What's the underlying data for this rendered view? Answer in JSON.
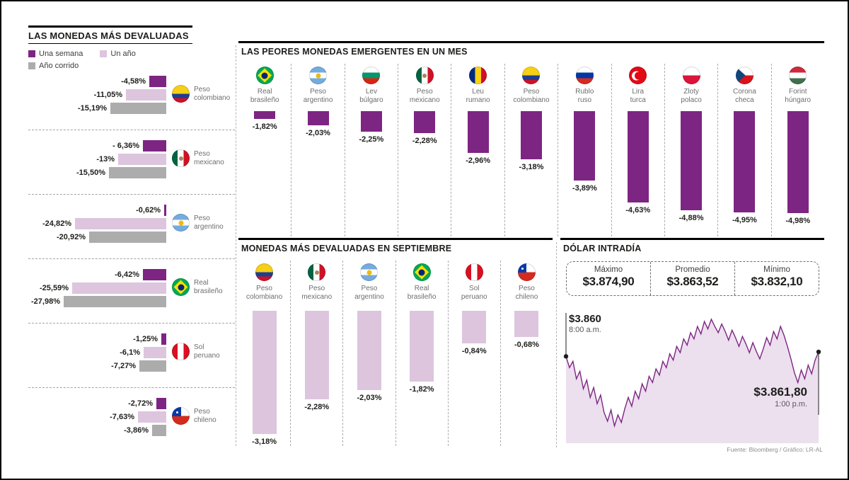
{
  "page": {
    "source_credit": "Fuente: Bloomberg / Gráfico: LR-AL"
  },
  "colors": {
    "purple": "#7d2582",
    "pink": "#ddc5de",
    "pink_light": "#ecdfee",
    "gray": "#acacac",
    "dark": "#1d1d1b"
  },
  "chart_data": [
    {
      "id": "monedas_mas_devaluadas",
      "type": "bar",
      "orientation": "horizontal",
      "title": "LAS MONEDAS MÁS DEVALUADAS",
      "unit": "%",
      "legend": [
        {
          "label": "Una semana",
          "color": "#7d2582"
        },
        {
          "label": "Un año",
          "color": "#ddc5de"
        },
        {
          "label": "Año corrido",
          "color": "#acacac"
        }
      ],
      "groups": [
        {
          "currency": [
            "Peso",
            "colombiano"
          ],
          "flag": "colombia",
          "values": [
            {
              "series": "Una semana",
              "label": "-4,58%",
              "value": -4.58
            },
            {
              "series": "Un año",
              "label": "-11,05%",
              "value": -11.05
            },
            {
              "series": "Año corrido",
              "label": "-15,19%",
              "value": -15.19
            }
          ]
        },
        {
          "currency": [
            "Peso",
            "mexicano"
          ],
          "flag": "mexico",
          "values": [
            {
              "series": "Una semana",
              "label": "- 6,36%",
              "value": -6.36
            },
            {
              "series": "Un año",
              "label": "-13%",
              "value": -13
            },
            {
              "series": "Año corrido",
              "label": "-15,50%",
              "value": -15.5
            }
          ]
        },
        {
          "currency": [
            "Peso",
            "argentino"
          ],
          "flag": "argentina",
          "values": [
            {
              "series": "Una semana",
              "label": "-0,62%",
              "value": -0.62
            },
            {
              "series": "Un año",
              "label": "-24,82%",
              "value": -24.82
            },
            {
              "series": "Año corrido",
              "label": "-20,92%",
              "value": -20.92
            }
          ]
        },
        {
          "currency": [
            "Real",
            "brasileño"
          ],
          "flag": "brazil",
          "values": [
            {
              "series": "Una semana",
              "label": "-6,42%",
              "value": -6.42
            },
            {
              "series": "Un año",
              "label": "-25,59%",
              "value": -25.59
            },
            {
              "series": "Año corrido",
              "label": "-27,98%",
              "value": -27.98
            }
          ]
        },
        {
          "currency": [
            "Sol",
            "peruano"
          ],
          "flag": "peru",
          "values": [
            {
              "series": "Una semana",
              "label": "-1,25%",
              "value": -1.25
            },
            {
              "series": "Un año",
              "label": "-6,1%",
              "value": -6.1
            },
            {
              "series": "Año corrido",
              "label": "-7,27%",
              "value": -7.27
            }
          ]
        },
        {
          "currency": [
            "Peso",
            "chileno"
          ],
          "flag": "chile",
          "values": [
            {
              "series": "Una semana",
              "label": "-2,72%",
              "value": -2.72
            },
            {
              "series": "Un año",
              "label": "-7,63%",
              "value": -7.63
            },
            {
              "series": "Año corrido",
              "label": "-3,86%",
              "value": -3.86
            }
          ]
        }
      ]
    },
    {
      "id": "peores_emergentes_mes",
      "type": "bar",
      "orientation": "vertical",
      "title": "LAS PEORES MONEDAS EMERGENTES EN UN MES",
      "unit": "%",
      "items": [
        {
          "name": [
            "Real",
            "brasileño"
          ],
          "flag": "brazil",
          "label": "-1,82%",
          "value": -1.82
        },
        {
          "name": [
            "Peso",
            "argentino"
          ],
          "flag": "argentina",
          "label": "-2,03%",
          "value": -2.03
        },
        {
          "name": [
            "Lev",
            "búlgaro"
          ],
          "flag": "bulgaria",
          "label": "-2,25%",
          "value": -2.25
        },
        {
          "name": [
            "Peso",
            "mexicano"
          ],
          "flag": "mexico",
          "label": "-2,28%",
          "value": -2.28
        },
        {
          "name": [
            "Leu",
            "rumano"
          ],
          "flag": "romania",
          "label": "-2,96%",
          "value": -2.96
        },
        {
          "name": [
            "Peso",
            "colombiano"
          ],
          "flag": "colombia",
          "label": "-3,18%",
          "value": -3.18
        },
        {
          "name": [
            "Rublo",
            "ruso"
          ],
          "flag": "russia",
          "label": "-3,89%",
          "value": -3.89
        },
        {
          "name": [
            "Lira",
            "turca"
          ],
          "flag": "turkey",
          "label": "-4,63%",
          "value": -4.63
        },
        {
          "name": [
            "Zloty",
            "polaco"
          ],
          "flag": "poland",
          "label": "-4,88%",
          "value": -4.88
        },
        {
          "name": [
            "Corona",
            "checa"
          ],
          "flag": "czech",
          "label": "-4,95%",
          "value": -4.95
        },
        {
          "name": [
            "Forint",
            "húngaro"
          ],
          "flag": "hungary",
          "label": "-4,98%",
          "value": -4.98
        }
      ]
    },
    {
      "id": "devaluadas_septiembre",
      "type": "bar",
      "orientation": "vertical",
      "title": "MONEDAS MÁS DEVALUADAS EN SEPTIEMBRE",
      "unit": "%",
      "items": [
        {
          "name": [
            "Peso",
            "colombiano"
          ],
          "flag": "colombia",
          "label": "-3,18%",
          "value": -3.18
        },
        {
          "name": [
            "Peso",
            "mexicano"
          ],
          "flag": "mexico",
          "label": "-2,28%",
          "value": -2.28
        },
        {
          "name": [
            "Peso",
            "argentino"
          ],
          "flag": "argentina",
          "label": "-2,03%",
          "value": -2.03
        },
        {
          "name": [
            "Real",
            "brasileño"
          ],
          "flag": "brazil",
          "label": "-1,82%",
          "value": -1.82
        },
        {
          "name": [
            "Sol",
            "peruano"
          ],
          "flag": "peru",
          "label": "-0,84%",
          "value": -0.84
        },
        {
          "name": [
            "Peso",
            "chileno"
          ],
          "flag": "chile",
          "label": "-0,68%",
          "value": -0.68
        }
      ]
    },
    {
      "id": "dolar_intradia",
      "type": "line",
      "title": "DÓLAR INTRADÍA",
      "stats": [
        {
          "label": "Máximo",
          "value": "$3.874,90"
        },
        {
          "label": "Promedio",
          "value": "$3.863,52"
        },
        {
          "label": "Mínimo",
          "value": "$3.832,10"
        }
      ],
      "open_label": {
        "value": "$3.860",
        "time": "8:00 a.m."
      },
      "close_label": {
        "value": "$3.861,80",
        "time": "1:00 p.m."
      },
      "y_range": [
        3828,
        3878
      ],
      "series": [
        3860,
        3855.5,
        3858,
        3851,
        3854,
        3847,
        3850.5,
        3843.5,
        3847.5,
        3841,
        3844.5,
        3837.5,
        3834,
        3838.5,
        3832.1,
        3836.5,
        3833.5,
        3839,
        3843.5,
        3840,
        3846,
        3843,
        3849,
        3846,
        3852,
        3849.5,
        3855,
        3852.5,
        3858,
        3855.5,
        3861,
        3858.5,
        3864,
        3861.5,
        3867,
        3864.5,
        3869.5,
        3867,
        3872,
        3869,
        3874,
        3871,
        3874.9,
        3872,
        3869.5,
        3873,
        3870,
        3866.5,
        3870.5,
        3867.5,
        3864,
        3868,
        3865,
        3861.5,
        3865.5,
        3862,
        3859,
        3863,
        3867.5,
        3864.5,
        3870,
        3867,
        3872,
        3868.5,
        3864,
        3859,
        3853.5,
        3849.5,
        3854.5,
        3851,
        3856.5,
        3853,
        3858.5,
        3861.8
      ]
    }
  ]
}
